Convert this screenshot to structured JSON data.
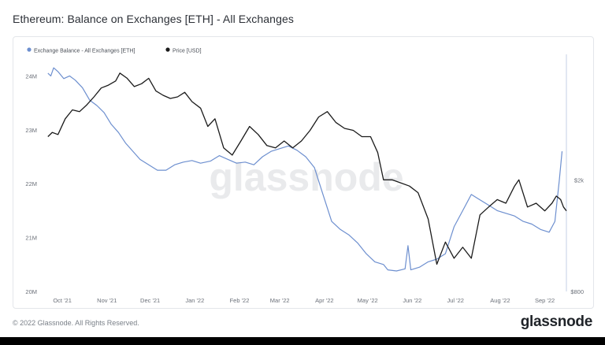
{
  "page": {
    "title": "Ethereum: Balance on Exchanges [ETH] - All Exchanges",
    "copyright": "© 2022 Glassnode. All Rights Reserved.",
    "brand": "glassnode",
    "watermark": "glassnode"
  },
  "chart_data": {
    "type": "line",
    "title": "Ethereum: Balance on Exchanges [ETH] - All Exchanges",
    "x_tick_labels": [
      "Oct '21",
      "Nov '21",
      "Dec '21",
      "Jan '22",
      "Feb '22",
      "Mar '22",
      "Apr '22",
      "May '22",
      "Jun '22",
      "Jul '22",
      "Aug '22",
      "Sep '22"
    ],
    "y_left": {
      "tick_labels": [
        "24M",
        "23M",
        "22M",
        "21M",
        "20M"
      ],
      "ticks": [
        24000000,
        23000000,
        22000000,
        21000000,
        20000000
      ],
      "range": [
        20000000,
        24400000
      ]
    },
    "y_right": {
      "scale": "log",
      "tick_labels": [
        "$2k",
        "$800"
      ],
      "ticks": [
        2000,
        800
      ],
      "range": [
        800,
        5600
      ]
    },
    "legend_position": "top-left",
    "grid": false,
    "colors": {
      "balance": "#6d8fcf",
      "price": "#1b1b1b"
    },
    "series": [
      {
        "name": "Exchange Balance - All Exchanges [ETH]",
        "axis": "left",
        "color": "#6d8fcf",
        "points": [
          [
            "2021-09-21",
            24050000
          ],
          [
            "2021-09-23",
            24000000
          ],
          [
            "2021-09-25",
            24150000
          ],
          [
            "2021-09-28",
            24080000
          ],
          [
            "2021-10-02",
            23950000
          ],
          [
            "2021-10-06",
            24000000
          ],
          [
            "2021-10-10",
            23920000
          ],
          [
            "2021-10-15",
            23780000
          ],
          [
            "2021-10-20",
            23550000
          ],
          [
            "2021-10-25",
            23450000
          ],
          [
            "2021-10-30",
            23320000
          ],
          [
            "2021-11-04",
            23100000
          ],
          [
            "2021-11-09",
            22950000
          ],
          [
            "2021-11-14",
            22750000
          ],
          [
            "2021-11-19",
            22600000
          ],
          [
            "2021-11-24",
            22450000
          ],
          [
            "2021-11-30",
            22350000
          ],
          [
            "2021-12-06",
            22250000
          ],
          [
            "2021-12-12",
            22250000
          ],
          [
            "2021-12-18",
            22350000
          ],
          [
            "2021-12-24",
            22400000
          ],
          [
            "2021-12-30",
            22430000
          ],
          [
            "2022-01-05",
            22380000
          ],
          [
            "2022-01-12",
            22420000
          ],
          [
            "2022-01-18",
            22520000
          ],
          [
            "2022-01-24",
            22450000
          ],
          [
            "2022-01-30",
            22380000
          ],
          [
            "2022-02-05",
            22400000
          ],
          [
            "2022-02-11",
            22350000
          ],
          [
            "2022-02-17",
            22500000
          ],
          [
            "2022-02-23",
            22600000
          ],
          [
            "2022-03-01",
            22650000
          ],
          [
            "2022-03-07",
            22700000
          ],
          [
            "2022-03-13",
            22620000
          ],
          [
            "2022-03-19",
            22500000
          ],
          [
            "2022-03-25",
            22300000
          ],
          [
            "2022-03-31",
            21800000
          ],
          [
            "2022-04-06",
            21300000
          ],
          [
            "2022-04-12",
            21150000
          ],
          [
            "2022-04-18",
            21050000
          ],
          [
            "2022-04-24",
            20900000
          ],
          [
            "2022-04-30",
            20700000
          ],
          [
            "2022-05-06",
            20550000
          ],
          [
            "2022-05-12",
            20500000
          ],
          [
            "2022-05-15",
            20400000
          ],
          [
            "2022-05-21",
            20380000
          ],
          [
            "2022-05-27",
            20420000
          ],
          [
            "2022-05-29",
            20850000
          ],
          [
            "2022-05-31",
            20400000
          ],
          [
            "2022-06-06",
            20450000
          ],
          [
            "2022-06-12",
            20550000
          ],
          [
            "2022-06-18",
            20600000
          ],
          [
            "2022-06-24",
            20700000
          ],
          [
            "2022-06-30",
            21200000
          ],
          [
            "2022-07-06",
            21500000
          ],
          [
            "2022-07-12",
            21800000
          ],
          [
            "2022-07-18",
            21700000
          ],
          [
            "2022-07-24",
            21600000
          ],
          [
            "2022-07-30",
            21500000
          ],
          [
            "2022-08-05",
            21450000
          ],
          [
            "2022-08-11",
            21400000
          ],
          [
            "2022-08-17",
            21300000
          ],
          [
            "2022-08-23",
            21250000
          ],
          [
            "2022-08-29",
            21150000
          ],
          [
            "2022-09-04",
            21100000
          ],
          [
            "2022-09-08",
            21300000
          ],
          [
            "2022-09-11",
            22050000
          ],
          [
            "2022-09-13",
            22600000
          ]
        ]
      },
      {
        "name": "Price [USD]",
        "axis": "right",
        "color": "#1b1b1b",
        "points": [
          [
            "2021-09-21",
            2850
          ],
          [
            "2021-09-24",
            2950
          ],
          [
            "2021-09-28",
            2900
          ],
          [
            "2021-10-03",
            3300
          ],
          [
            "2021-10-08",
            3550
          ],
          [
            "2021-10-13",
            3500
          ],
          [
            "2021-10-18",
            3700
          ],
          [
            "2021-10-23",
            3950
          ],
          [
            "2021-10-28",
            4250
          ],
          [
            "2021-11-02",
            4350
          ],
          [
            "2021-11-07",
            4500
          ],
          [
            "2021-11-10",
            4800
          ],
          [
            "2021-11-15",
            4600
          ],
          [
            "2021-11-20",
            4300
          ],
          [
            "2021-11-25",
            4400
          ],
          [
            "2021-11-30",
            4600
          ],
          [
            "2021-12-05",
            4150
          ],
          [
            "2021-12-10",
            4000
          ],
          [
            "2021-12-15",
            3900
          ],
          [
            "2021-12-20",
            3950
          ],
          [
            "2021-12-25",
            4100
          ],
          [
            "2021-12-30",
            3800
          ],
          [
            "2022-01-05",
            3600
          ],
          [
            "2022-01-10",
            3100
          ],
          [
            "2022-01-15",
            3300
          ],
          [
            "2022-01-21",
            2600
          ],
          [
            "2022-01-27",
            2450
          ],
          [
            "2022-02-02",
            2750
          ],
          [
            "2022-02-08",
            3100
          ],
          [
            "2022-02-14",
            2900
          ],
          [
            "2022-02-20",
            2650
          ],
          [
            "2022-02-26",
            2600
          ],
          [
            "2022-03-04",
            2750
          ],
          [
            "2022-03-10",
            2600
          ],
          [
            "2022-03-16",
            2750
          ],
          [
            "2022-03-22",
            3000
          ],
          [
            "2022-03-28",
            3350
          ],
          [
            "2022-04-03",
            3500
          ],
          [
            "2022-04-09",
            3200
          ],
          [
            "2022-04-15",
            3050
          ],
          [
            "2022-04-21",
            3000
          ],
          [
            "2022-04-27",
            2850
          ],
          [
            "2022-05-03",
            2850
          ],
          [
            "2022-05-08",
            2500
          ],
          [
            "2022-05-12",
            2000
          ],
          [
            "2022-05-18",
            2000
          ],
          [
            "2022-05-24",
            1950
          ],
          [
            "2022-05-30",
            1900
          ],
          [
            "2022-06-05",
            1800
          ],
          [
            "2022-06-12",
            1450
          ],
          [
            "2022-06-18",
            1000
          ],
          [
            "2022-06-24",
            1200
          ],
          [
            "2022-06-30",
            1050
          ],
          [
            "2022-07-06",
            1150
          ],
          [
            "2022-07-12",
            1050
          ],
          [
            "2022-07-18",
            1500
          ],
          [
            "2022-07-24",
            1600
          ],
          [
            "2022-07-30",
            1700
          ],
          [
            "2022-08-05",
            1650
          ],
          [
            "2022-08-11",
            1900
          ],
          [
            "2022-08-14",
            2000
          ],
          [
            "2022-08-20",
            1600
          ],
          [
            "2022-08-26",
            1650
          ],
          [
            "2022-09-01",
            1550
          ],
          [
            "2022-09-06",
            1650
          ],
          [
            "2022-09-09",
            1750
          ],
          [
            "2022-09-12",
            1700
          ],
          [
            "2022-09-14",
            1600
          ],
          [
            "2022-09-16",
            1550
          ]
        ]
      }
    ]
  }
}
